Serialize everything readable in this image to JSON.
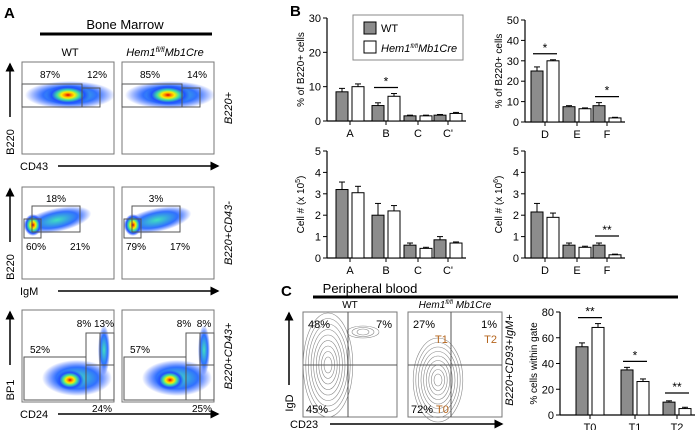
{
  "panel_a": {
    "label": "A",
    "title": "Bone Marrow",
    "col_wt": "WT",
    "col_ko": "Hem1",
    "col_ko_sup": "fl/fl",
    "col_ko_suffix": "Mb1Cre",
    "rows": [
      {
        "ylabel": "B220",
        "xlabel": "CD43",
        "gate": "B220+",
        "wt": [
          "87%",
          "12%"
        ],
        "ko": [
          "85%",
          "14%"
        ]
      },
      {
        "ylabel": "B220",
        "xlabel": "IgM",
        "gate": "B220+CD43-",
        "wt": [
          "18%",
          "60%",
          "21%"
        ],
        "ko": [
          "3%",
          "79%",
          "17%"
        ]
      },
      {
        "ylabel": "BP1",
        "xlabel": "CD24",
        "gate": "B220+CD43+",
        "wt": [
          "52%",
          "8%",
          "13%",
          "24%"
        ],
        "ko": [
          "57%",
          "8%",
          "8%",
          "25%"
        ]
      }
    ]
  },
  "panel_b": {
    "label": "B"
  },
  "legend": {
    "wt": "WT",
    "ko": "Hem1",
    "ko_sup": "fl/fl",
    "ko_suffix": "Mb1Cre"
  },
  "colors": {
    "wt": "#8c8c8c",
    "ko": "#ffffff",
    "annotation": "#b5651d"
  },
  "panel_c": {
    "label": "C",
    "title": "Peripheral blood",
    "col_wt": "WT",
    "col_ko": "Hem1",
    "col_ko_sup": "fl/fl",
    "col_ko_suffix": " Mb1Cre",
    "ylabel": "IgD",
    "xlabel": "CD23",
    "gate": "B220+CD93+IgM+",
    "wt": [
      "48%",
      "7%",
      "45%"
    ],
    "ko": [
      "27%",
      "1%",
      "72%"
    ],
    "ko_gates": [
      "T1",
      "T2",
      "T0"
    ]
  },
  "chart_data": [
    {
      "type": "bar",
      "ylabel": "% of B220+ cells",
      "ylim": [
        0,
        30
      ],
      "yticks": [
        0,
        10,
        20,
        30
      ],
      "categories": [
        "A",
        "B",
        "C",
        "C'"
      ],
      "series": [
        {
          "name": "WT",
          "values": [
            8.5,
            4.5,
            1.5,
            1.7
          ],
          "sem": [
            1.0,
            0.8,
            0.2,
            0.2
          ]
        },
        {
          "name": "Hem1fl/flMb1Cre",
          "values": [
            10,
            7.2,
            1.5,
            2.2
          ],
          "sem": [
            0.8,
            0.8,
            0.2,
            0.3
          ]
        }
      ],
      "significance": [
        {
          "category": "B",
          "label": "*"
        }
      ]
    },
    {
      "type": "bar",
      "ylabel": "% of B220+ cells",
      "ylim": [
        0,
        50
      ],
      "yticks": [
        0,
        10,
        20,
        30,
        40,
        50
      ],
      "categories": [
        "D",
        "E",
        "F"
      ],
      "series": [
        {
          "name": "WT",
          "values": [
            25,
            7.5,
            8
          ],
          "sem": [
            2,
            0.5,
            1.5
          ]
        },
        {
          "name": "Hem1fl/flMb1Cre",
          "values": [
            30,
            6.5,
            2
          ],
          "sem": [
            0.5,
            0.4,
            0.3
          ]
        }
      ],
      "significance": [
        {
          "category": "D",
          "label": "*"
        },
        {
          "category": "F",
          "label": "*"
        }
      ]
    },
    {
      "type": "bar",
      "ylabel": "Cell # (x 10",
      "ylabel_sup": "5",
      "ylabel_end": ")",
      "ylim": [
        0,
        5
      ],
      "yticks": [
        0,
        1,
        2,
        3,
        4,
        5
      ],
      "categories": [
        "A",
        "B",
        "C",
        "C'"
      ],
      "series": [
        {
          "name": "WT",
          "values": [
            3.2,
            2.0,
            0.6,
            0.85
          ],
          "sem": [
            0.35,
            0.55,
            0.1,
            0.15
          ]
        },
        {
          "name": "Hem1fl/flMb1Cre",
          "values": [
            3.05,
            2.2,
            0.45,
            0.7
          ],
          "sem": [
            0.3,
            0.25,
            0.05,
            0.05
          ]
        }
      ],
      "significance": []
    },
    {
      "type": "bar",
      "ylabel": "Cell # (x 10",
      "ylabel_sup": "6",
      "ylabel_end": ")",
      "ylim": [
        0,
        5
      ],
      "yticks": [
        0,
        1,
        2,
        3,
        4,
        5
      ],
      "categories": [
        "D",
        "E",
        "F"
      ],
      "series": [
        {
          "name": "WT",
          "values": [
            2.15,
            0.6,
            0.6
          ],
          "sem": [
            0.4,
            0.1,
            0.1
          ]
        },
        {
          "name": "Hem1fl/flMb1Cre",
          "values": [
            1.9,
            0.5,
            0.15
          ],
          "sem": [
            0.2,
            0.05,
            0.03
          ]
        }
      ],
      "significance": [
        {
          "category": "F",
          "label": "**"
        }
      ]
    },
    {
      "type": "bar",
      "ylabel": "% cells within gate",
      "ylim": [
        0,
        80
      ],
      "yticks": [
        0,
        20,
        40,
        60,
        80
      ],
      "categories": [
        "T0",
        "T1",
        "T2"
      ],
      "series": [
        {
          "name": "WT",
          "values": [
            53,
            35,
            10
          ],
          "sem": [
            3,
            2,
            1
          ]
        },
        {
          "name": "Hem1fl/flMb1Cre",
          "values": [
            68,
            26,
            5
          ],
          "sem": [
            3,
            2,
            1
          ]
        }
      ],
      "significance": [
        {
          "category": "T0",
          "label": "**"
        },
        {
          "category": "T1",
          "label": "*"
        },
        {
          "category": "T2",
          "label": "**"
        }
      ]
    }
  ]
}
